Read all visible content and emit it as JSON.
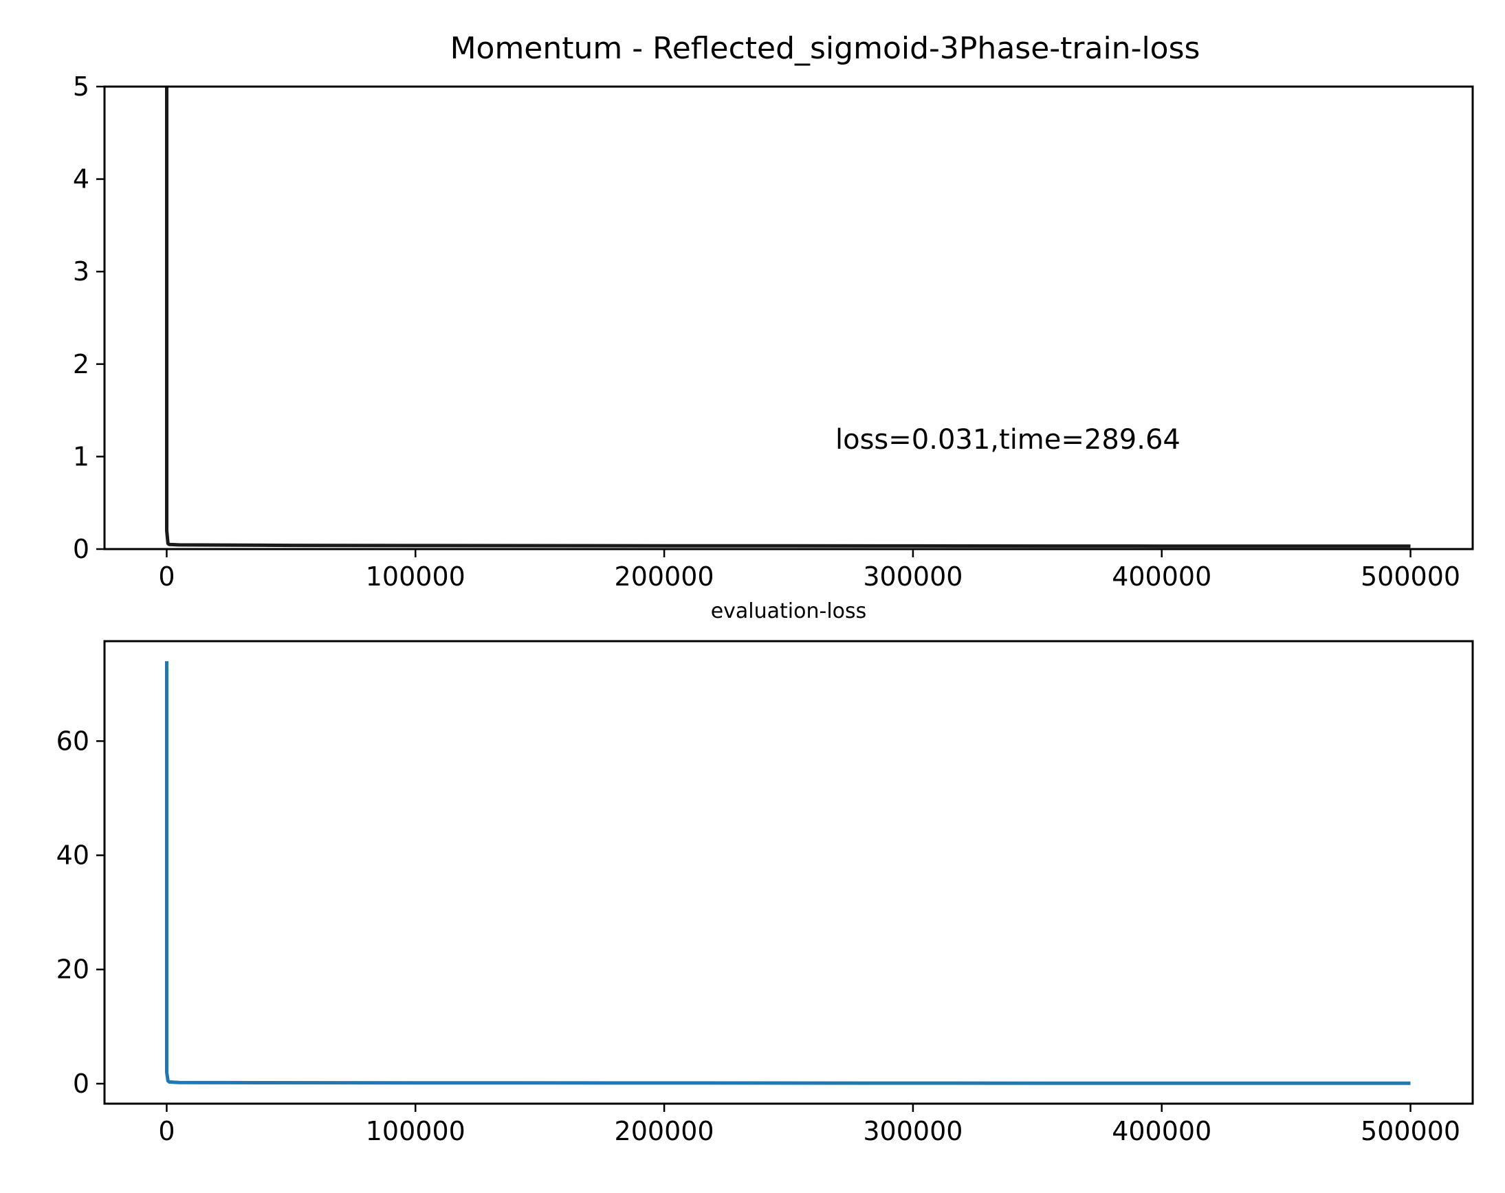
{
  "chart_data": [
    {
      "type": "line",
      "title": "Momentum - Reflected_sigmoid-3Phase-train-loss",
      "xlabel": "",
      "ylabel": "",
      "xlim": [
        -25000,
        525000
      ],
      "ylim": [
        0,
        5
      ],
      "x_ticks": [
        0,
        100000,
        200000,
        300000,
        400000,
        500000
      ],
      "x_tick_labels": [
        "0",
        "100000",
        "200000",
        "300000",
        "400000",
        "500000"
      ],
      "y_ticks": [
        0,
        1,
        2,
        3,
        4,
        5
      ],
      "y_tick_labels": [
        "0",
        "1",
        "2",
        "3",
        "4",
        "5"
      ],
      "grid": false,
      "line_color": "#1a1a1a",
      "annotation": {
        "text": "loss=0.031,time=289.64",
        "x": 270000,
        "y": 1.1
      },
      "series": [
        {
          "x": [
            0,
            0,
            0,
            0,
            500,
            1000,
            5000,
            50000,
            100000,
            200000,
            300000,
            400000,
            500000
          ],
          "y": [
            5.0,
            3.5,
            1.0,
            0.2,
            0.06,
            0.05,
            0.045,
            0.04,
            0.038,
            0.036,
            0.034,
            0.032,
            0.031
          ]
        }
      ]
    },
    {
      "type": "line",
      "title": "evaluation-loss",
      "xlabel": "",
      "ylabel": "",
      "xlim": [
        -25000,
        525000
      ],
      "ylim": [
        -3.5,
        77.5
      ],
      "x_ticks": [
        0,
        100000,
        200000,
        300000,
        400000,
        500000
      ],
      "x_tick_labels": [
        "0",
        "100000",
        "200000",
        "300000",
        "400000",
        "500000"
      ],
      "y_ticks": [
        0,
        20,
        40,
        60
      ],
      "y_tick_labels": [
        "0",
        "20",
        "40",
        "60"
      ],
      "grid": false,
      "line_color": "#1f77b4",
      "series": [
        {
          "x": [
            0,
            0,
            0,
            0,
            500,
            1000,
            5000,
            100000,
            200000,
            300000,
            400000,
            500000
          ],
          "y": [
            74,
            60,
            30,
            2,
            0.5,
            0.3,
            0.2,
            0.15,
            0.12,
            0.1,
            0.08,
            0.07
          ]
        }
      ]
    }
  ]
}
